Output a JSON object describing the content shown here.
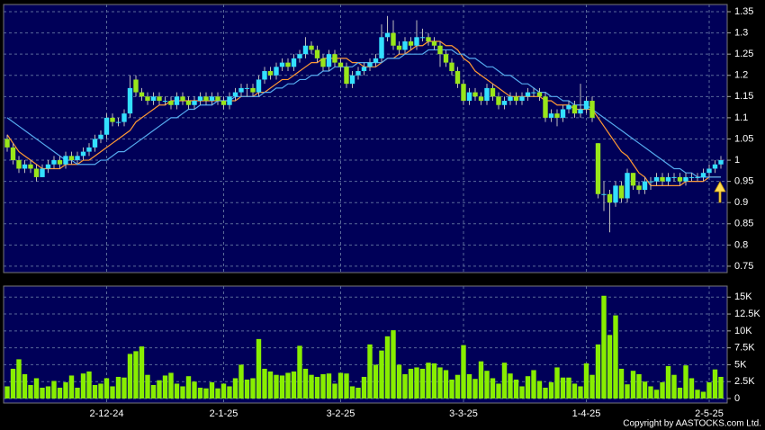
{
  "chart_data": {
    "type": "candlestick",
    "categories": [
      null,
      null,
      null,
      null,
      null,
      null,
      null,
      null,
      null,
      null,
      null,
      null,
      null,
      null,
      null,
      null,
      null,
      "2-12-24",
      null,
      null,
      null,
      null,
      null,
      null,
      null,
      null,
      null,
      null,
      null,
      null,
      null,
      null,
      null,
      null,
      null,
      null,
      null,
      "2-1-25",
      null,
      null,
      null,
      null,
      null,
      null,
      null,
      null,
      null,
      null,
      null,
      null,
      null,
      null,
      null,
      null,
      null,
      null,
      null,
      "3-2-25",
      null,
      null,
      null,
      null,
      null,
      null,
      null,
      null,
      null,
      null,
      null,
      null,
      null,
      null,
      null,
      null,
      null,
      null,
      null,
      null,
      "3-3-25",
      null,
      null,
      null,
      null,
      null,
      null,
      null,
      null,
      null,
      null,
      null,
      null,
      null,
      null,
      null,
      null,
      null,
      null,
      null,
      null,
      "1-4-25",
      null,
      null,
      null,
      null,
      null,
      null,
      null,
      null,
      null,
      null,
      null,
      null,
      null,
      null,
      null,
      null,
      null,
      null,
      null,
      null,
      "2-5-25",
      null,
      null
    ],
    "candles": [
      [
        1.05,
        1.06,
        1.02,
        1.03
      ],
      [
        1.03,
        1.04,
        0.99,
        1.0
      ],
      [
        1.0,
        1.01,
        0.97,
        0.98
      ],
      [
        0.98,
        1.0,
        0.97,
        0.99
      ],
      [
        0.99,
        1.0,
        0.97,
        0.98
      ],
      [
        0.98,
        0.99,
        0.95,
        0.96
      ],
      [
        0.96,
        0.99,
        0.96,
        0.98
      ],
      [
        0.98,
        1.0,
        0.97,
        0.99
      ],
      [
        0.99,
        1.01,
        0.98,
        1.0
      ],
      [
        1.0,
        1.01,
        0.98,
        0.99
      ],
      [
        0.99,
        1.02,
        0.98,
        1.01
      ],
      [
        1.01,
        1.02,
        0.99,
        1.0
      ],
      [
        1.0,
        1.02,
        0.99,
        1.01
      ],
      [
        1.01,
        1.03,
        1.0,
        1.02
      ],
      [
        1.02,
        1.04,
        1.01,
        1.03
      ],
      [
        1.03,
        1.06,
        1.02,
        1.05
      ],
      [
        1.05,
        1.07,
        1.04,
        1.06
      ],
      [
        1.06,
        1.11,
        1.05,
        1.1
      ],
      [
        1.1,
        1.11,
        1.08,
        1.09
      ],
      [
        1.09,
        1.1,
        1.08,
        1.09
      ],
      [
        1.09,
        1.12,
        1.08,
        1.11
      ],
      [
        1.11,
        1.2,
        1.1,
        1.17
      ],
      [
        1.19,
        1.2,
        1.15,
        1.16
      ],
      [
        1.16,
        1.17,
        1.14,
        1.15
      ],
      [
        1.15,
        1.16,
        1.13,
        1.14
      ],
      [
        1.14,
        1.16,
        1.13,
        1.15
      ],
      [
        1.15,
        1.16,
        1.13,
        1.14
      ],
      [
        1.14,
        1.15,
        1.13,
        1.14
      ],
      [
        1.14,
        1.15,
        1.12,
        1.13
      ],
      [
        1.13,
        1.16,
        1.12,
        1.15
      ],
      [
        1.15,
        1.16,
        1.13,
        1.14
      ],
      [
        1.14,
        1.15,
        1.12,
        1.13
      ],
      [
        1.13,
        1.15,
        1.12,
        1.14
      ],
      [
        1.14,
        1.16,
        1.13,
        1.15
      ],
      [
        1.15,
        1.16,
        1.13,
        1.14
      ],
      [
        1.14,
        1.16,
        1.13,
        1.15
      ],
      [
        1.15,
        1.16,
        1.13,
        1.14
      ],
      [
        1.14,
        1.15,
        1.12,
        1.13
      ],
      [
        1.13,
        1.16,
        1.12,
        1.15
      ],
      [
        1.15,
        1.17,
        1.14,
        1.16
      ],
      [
        1.16,
        1.18,
        1.15,
        1.17
      ],
      [
        1.17,
        1.18,
        1.15,
        1.17
      ],
      [
        1.17,
        1.18,
        1.15,
        1.16
      ],
      [
        1.16,
        1.2,
        1.15,
        1.19
      ],
      [
        1.19,
        1.22,
        1.18,
        1.21
      ],
      [
        1.21,
        1.22,
        1.19,
        1.2
      ],
      [
        1.2,
        1.23,
        1.19,
        1.22
      ],
      [
        1.22,
        1.24,
        1.21,
        1.23
      ],
      [
        1.23,
        1.24,
        1.21,
        1.22
      ],
      [
        1.22,
        1.25,
        1.21,
        1.24
      ],
      [
        1.24,
        1.26,
        1.23,
        1.25
      ],
      [
        1.25,
        1.29,
        1.24,
        1.27
      ],
      [
        1.27,
        1.28,
        1.25,
        1.26
      ],
      [
        1.26,
        1.27,
        1.23,
        1.24
      ],
      [
        1.24,
        1.25,
        1.21,
        1.22
      ],
      [
        1.22,
        1.26,
        1.21,
        1.25
      ],
      [
        1.25,
        1.26,
        1.22,
        1.23
      ],
      [
        1.23,
        1.24,
        1.21,
        1.22
      ],
      [
        1.22,
        1.23,
        1.17,
        1.18
      ],
      [
        1.18,
        1.21,
        1.17,
        1.2
      ],
      [
        1.2,
        1.22,
        1.19,
        1.21
      ],
      [
        1.21,
        1.23,
        1.2,
        1.22
      ],
      [
        1.22,
        1.24,
        1.21,
        1.23
      ],
      [
        1.23,
        1.25,
        1.22,
        1.24
      ],
      [
        1.24,
        1.32,
        1.23,
        1.29
      ],
      [
        1.29,
        1.34,
        1.28,
        1.3
      ],
      [
        1.3,
        1.33,
        1.26,
        1.27
      ],
      [
        1.27,
        1.28,
        1.25,
        1.26
      ],
      [
        1.26,
        1.29,
        1.25,
        1.28
      ],
      [
        1.28,
        1.29,
        1.26,
        1.27
      ],
      [
        1.27,
        1.33,
        1.26,
        1.29
      ],
      [
        1.29,
        1.31,
        1.28,
        1.29
      ],
      [
        1.29,
        1.3,
        1.27,
        1.28
      ],
      [
        1.28,
        1.29,
        1.26,
        1.27
      ],
      [
        1.27,
        1.28,
        1.22,
        1.25
      ],
      [
        1.25,
        1.26,
        1.22,
        1.23
      ],
      [
        1.23,
        1.24,
        1.2,
        1.21
      ],
      [
        1.21,
        1.22,
        1.17,
        1.18
      ],
      [
        1.18,
        1.19,
        1.13,
        1.14
      ],
      [
        1.14,
        1.17,
        1.13,
        1.16
      ],
      [
        1.16,
        1.17,
        1.14,
        1.15
      ],
      [
        1.15,
        1.16,
        1.13,
        1.14
      ],
      [
        1.14,
        1.18,
        1.13,
        1.17
      ],
      [
        1.17,
        1.18,
        1.14,
        1.15
      ],
      [
        1.15,
        1.16,
        1.12,
        1.13
      ],
      [
        1.13,
        1.15,
        1.12,
        1.14
      ],
      [
        1.14,
        1.16,
        1.13,
        1.15
      ],
      [
        1.15,
        1.16,
        1.13,
        1.14
      ],
      [
        1.14,
        1.16,
        1.13,
        1.15
      ],
      [
        1.15,
        1.17,
        1.14,
        1.16
      ],
      [
        1.16,
        1.17,
        1.15,
        1.16
      ],
      [
        1.16,
        1.17,
        1.14,
        1.15
      ],
      [
        1.15,
        1.16,
        1.09,
        1.1
      ],
      [
        1.1,
        1.12,
        1.09,
        1.11
      ],
      [
        1.11,
        1.12,
        1.08,
        1.1
      ],
      [
        1.1,
        1.13,
        1.09,
        1.12
      ],
      [
        1.12,
        1.14,
        1.11,
        1.13
      ],
      [
        1.13,
        1.14,
        1.1,
        1.11
      ],
      [
        1.11,
        1.18,
        1.1,
        1.12
      ],
      [
        1.12,
        1.15,
        1.11,
        1.14
      ],
      [
        1.14,
        1.15,
        1.09,
        1.1
      ],
      [
        1.04,
        1.04,
        0.91,
        0.92
      ],
      [
        0.92,
        0.95,
        0.88,
        0.92
      ],
      [
        0.92,
        0.93,
        0.83,
        0.9
      ],
      [
        0.9,
        0.95,
        0.89,
        0.94
      ],
      [
        0.94,
        0.95,
        0.9,
        0.91
      ],
      [
        0.91,
        0.98,
        0.9,
        0.97
      ],
      [
        0.97,
        0.97,
        0.93,
        0.94
      ],
      [
        0.94,
        0.95,
        0.92,
        0.93
      ],
      [
        0.93,
        0.96,
        0.92,
        0.95
      ],
      [
        0.95,
        0.96,
        0.93,
        0.95
      ],
      [
        0.95,
        0.97,
        0.94,
        0.96
      ],
      [
        0.96,
        0.97,
        0.94,
        0.95
      ],
      [
        0.95,
        0.97,
        0.94,
        0.96
      ],
      [
        0.96,
        0.97,
        0.95,
        0.96
      ],
      [
        0.96,
        0.97,
        0.94,
        0.95
      ],
      [
        0.95,
        0.97,
        0.94,
        0.96
      ],
      [
        0.96,
        0.97,
        0.95,
        0.96
      ],
      [
        0.96,
        0.97,
        0.95,
        0.96
      ],
      [
        0.96,
        0.98,
        0.95,
        0.97
      ],
      [
        0.97,
        0.99,
        0.96,
        0.98
      ],
      [
        0.98,
        1.0,
        0.97,
        0.99
      ],
      [
        0.99,
        1.01,
        0.98,
        1.0
      ]
    ],
    "up_color": "#33e0ff",
    "down_color": "#99e61a",
    "lines": [
      {
        "color": "#ff9933",
        "values": [
          1.06,
          1.04,
          1.02,
          1.01,
          1.0,
          0.99,
          0.98,
          0.98,
          0.98,
          0.98,
          0.99,
          0.99,
          0.99,
          1.0,
          1.0,
          1.01,
          1.02,
          1.03,
          1.04,
          1.05,
          1.06,
          1.07,
          1.09,
          1.1,
          1.11,
          1.12,
          1.13,
          1.13,
          1.14,
          1.14,
          1.14,
          1.14,
          1.14,
          1.14,
          1.14,
          1.14,
          1.14,
          1.14,
          1.14,
          1.14,
          1.15,
          1.15,
          1.15,
          1.16,
          1.16,
          1.17,
          1.18,
          1.19,
          1.19,
          1.2,
          1.21,
          1.22,
          1.23,
          1.23,
          1.24,
          1.24,
          1.24,
          1.24,
          1.24,
          1.23,
          1.23,
          1.22,
          1.22,
          1.22,
          1.23,
          1.24,
          1.24,
          1.25,
          1.25,
          1.26,
          1.27,
          1.27,
          1.28,
          1.28,
          1.28,
          1.27,
          1.27,
          1.26,
          1.24,
          1.23,
          1.21,
          1.2,
          1.19,
          1.18,
          1.17,
          1.16,
          1.15,
          1.15,
          1.15,
          1.15,
          1.15,
          1.15,
          1.14,
          1.14,
          1.13,
          1.13,
          1.13,
          1.12,
          1.12,
          1.12,
          1.12,
          1.1,
          1.08,
          1.06,
          1.04,
          1.02,
          1.01,
          0.99,
          0.97,
          0.96,
          0.94,
          0.94,
          0.94,
          0.94,
          0.94,
          0.94,
          0.95,
          0.95,
          0.95,
          0.95,
          0.96,
          0.96,
          0.96
        ]
      },
      {
        "color": "#55aaee",
        "values": [
          1.1,
          1.09,
          1.08,
          1.07,
          1.06,
          1.05,
          1.04,
          1.03,
          1.02,
          1.01,
          1.0,
          1.0,
          0.99,
          0.99,
          0.99,
          0.99,
          1.0,
          1.0,
          1.01,
          1.02,
          1.02,
          1.03,
          1.04,
          1.05,
          1.06,
          1.07,
          1.08,
          1.09,
          1.1,
          1.1,
          1.11,
          1.12,
          1.12,
          1.13,
          1.13,
          1.13,
          1.14,
          1.14,
          1.14,
          1.15,
          1.15,
          1.15,
          1.15,
          1.15,
          1.16,
          1.16,
          1.17,
          1.17,
          1.18,
          1.18,
          1.19,
          1.19,
          1.2,
          1.2,
          1.21,
          1.21,
          1.22,
          1.22,
          1.22,
          1.22,
          1.23,
          1.23,
          1.23,
          1.23,
          1.23,
          1.24,
          1.24,
          1.24,
          1.25,
          1.25,
          1.25,
          1.25,
          1.26,
          1.26,
          1.26,
          1.26,
          1.26,
          1.25,
          1.25,
          1.24,
          1.24,
          1.23,
          1.22,
          1.22,
          1.21,
          1.2,
          1.2,
          1.19,
          1.18,
          1.18,
          1.17,
          1.16,
          1.16,
          1.15,
          1.15,
          1.14,
          1.14,
          1.13,
          1.13,
          1.13,
          1.12,
          1.11,
          1.1,
          1.09,
          1.08,
          1.07,
          1.06,
          1.05,
          1.04,
          1.03,
          1.02,
          1.01,
          1.0,
          0.99,
          0.98,
          0.98,
          0.97,
          0.97,
          0.96,
          0.96,
          0.96,
          0.96,
          0.96
        ]
      }
    ],
    "ylim": [
      0.735,
      1.367
    ],
    "yticks": [
      0.75,
      0.8,
      0.85,
      0.9,
      0.95,
      1,
      1.05,
      1.1,
      1.15,
      1.2,
      1.25,
      1.3,
      1.35
    ],
    "grid": true,
    "volume": {
      "color": "#88ee00",
      "values": [
        1800,
        4400,
        5800,
        3600,
        2000,
        3000,
        1600,
        1800,
        2600,
        1600,
        2400,
        3400,
        1600,
        3700,
        4000,
        2000,
        2200,
        3000,
        1800,
        3200,
        3100,
        6600,
        7000,
        7700,
        3500,
        2000,
        2700,
        3400,
        3800,
        2200,
        1800,
        3300,
        2500,
        1600,
        1500,
        2400,
        1500,
        2200,
        1800,
        3000,
        5000,
        2800,
        3000,
        8800,
        4400,
        4000,
        3500,
        3400,
        3800,
        4000,
        7800,
        4400,
        3500,
        3200,
        3600,
        3700,
        2200,
        3800,
        3700,
        1800,
        1600,
        3200,
        8000,
        5000,
        7100,
        9200,
        10100,
        5000,
        3600,
        4400,
        4600,
        4400,
        5300,
        5200,
        4600,
        4200,
        2800,
        3500,
        7900,
        3600,
        2900,
        5500,
        4100,
        3000,
        2200,
        5300,
        3700,
        2800,
        1800,
        3300,
        4200,
        2600,
        1600,
        2400,
        4600,
        3100,
        3100,
        2200,
        1800,
        5200,
        3500,
        8000,
        15200,
        9400,
        12300,
        4400,
        2100,
        4100,
        3600,
        2500,
        1800,
        1300,
        2400,
        4800,
        3500,
        1600,
        4900,
        3000,
        1300,
        1000,
        2400,
        4300,
        3200
      ],
      "ylim": [
        0,
        16500
      ],
      "yticks": [
        0,
        {
          "value": 2500,
          "label": "2.5K"
        },
        {
          "value": 5000,
          "label": "5K"
        },
        {
          "value": 7500,
          "label": "7.5K"
        },
        {
          "value": 10000,
          "label": "10K"
        },
        {
          "value": 12500,
          "label": "12.5K"
        },
        {
          "value": 15000,
          "label": "15K"
        }
      ]
    },
    "copyright": "Copyright by AASTOCKS.com Ltd."
  }
}
